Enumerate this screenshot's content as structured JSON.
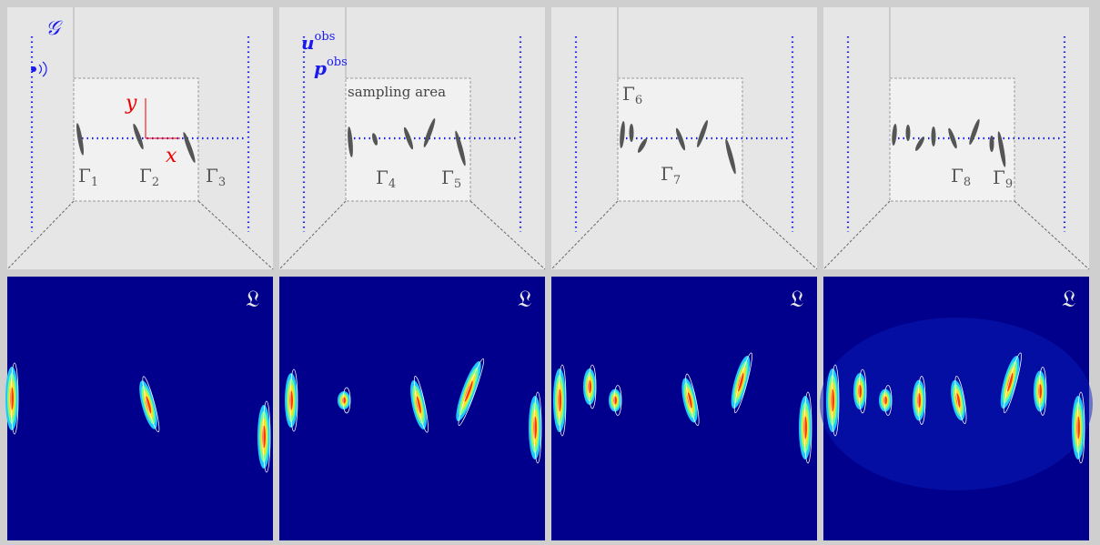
{
  "panels": [
    {
      "source_label": "𝒢",
      "axis_labels": {
        "y": "y",
        "x": "x"
      },
      "obstacle_labels": [
        {
          "base": "Γ",
          "sub": "1"
        },
        {
          "base": "Γ",
          "sub": "2"
        },
        {
          "base": "Γ",
          "sub": "3"
        }
      ]
    },
    {
      "observation_labels": [
        {
          "base": "u",
          "sup": "obs"
        },
        {
          "base": "p",
          "sup": "obs"
        }
      ],
      "region_label": "sampling area",
      "obstacle_labels": [
        {
          "base": "Γ",
          "sub": "4"
        },
        {
          "base": "Γ",
          "sub": "5"
        }
      ]
    },
    {
      "obstacle_labels": [
        {
          "base": "Γ",
          "sub": "6"
        },
        {
          "base": "Γ",
          "sub": "7"
        }
      ]
    },
    {
      "obstacle_labels": [
        {
          "base": "Γ",
          "sub": "8"
        },
        {
          "base": "Γ",
          "sub": "9"
        }
      ]
    }
  ],
  "result_panels": [
    {
      "label": "𝔏"
    },
    {
      "label": "𝔏"
    },
    {
      "label": "𝔏"
    },
    {
      "label": "𝔏"
    }
  ]
}
